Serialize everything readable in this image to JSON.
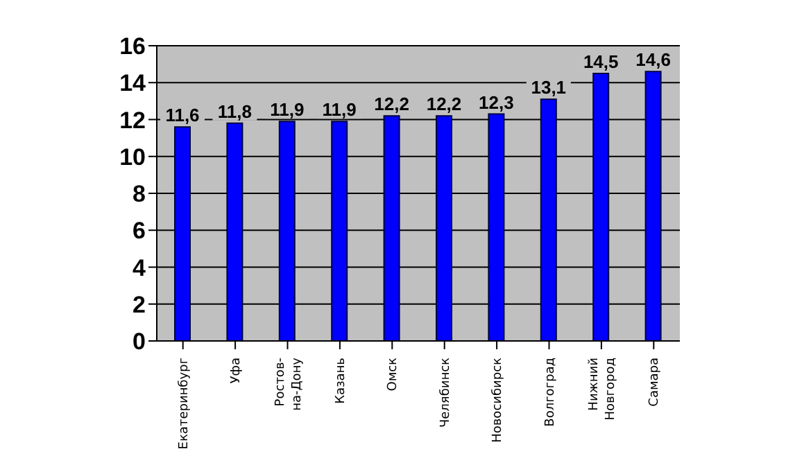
{
  "chart_data": {
    "type": "bar",
    "categories": [
      "Екатеринбург",
      "Уфа",
      "Ростов-на-Дону",
      "Казань",
      "Омск",
      "Челябинск",
      "Новосибирск",
      "Волгоград",
      "Нижний Новгород",
      "Самара"
    ],
    "values": [
      11.6,
      11.8,
      11.9,
      11.9,
      12.2,
      12.2,
      12.3,
      13.1,
      14.5,
      14.6
    ],
    "value_labels": [
      "11,6",
      "11,8",
      "11,9",
      "11,9",
      "12,2",
      "12,2",
      "12,3",
      "13,1",
      "14,5",
      "14,6"
    ],
    "color": "#0000ff",
    "ylim": [
      0,
      16
    ],
    "yticks": [
      0,
      2,
      4,
      6,
      8,
      10,
      12,
      14,
      16
    ],
    "grid": "y"
  }
}
